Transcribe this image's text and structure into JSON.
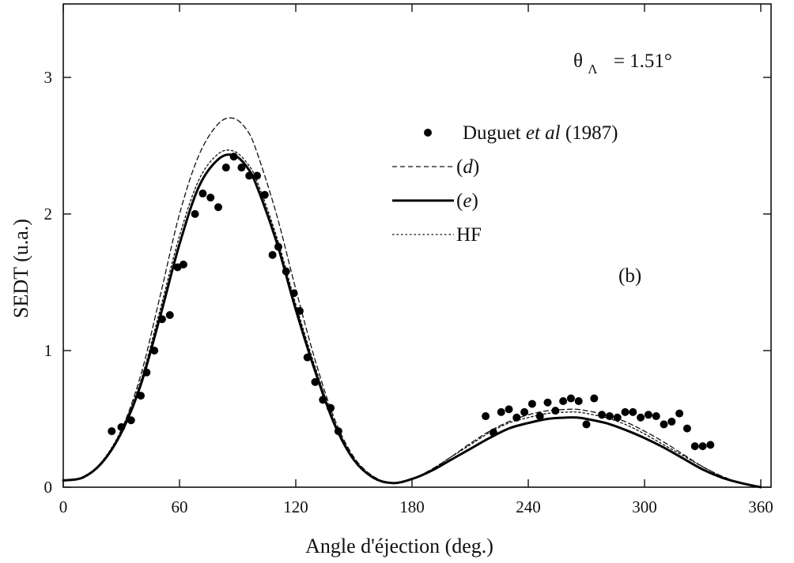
{
  "chart_data": {
    "type": "line",
    "xlabel": "Angle d'éjection (deg.)",
    "ylabel": "SEDT (u.a.)",
    "xlim": [
      0,
      360
    ],
    "ylim": [
      0,
      3.5
    ],
    "xticks": [
      "0",
      "60",
      "120",
      "180",
      "240",
      "300",
      "360"
    ],
    "yticks": [
      "0",
      "1",
      "2",
      "3"
    ],
    "grid": false,
    "legend_position": "top-right",
    "annotations": {
      "theta_base": "θ",
      "theta_sub": "Λ",
      "theta_value": "= 1.51°",
      "panel": "(b)"
    },
    "legend": [
      {
        "marker": "dot",
        "text_parts": [
          "Duguet ",
          "et al",
          "  (1987)"
        ]
      },
      {
        "marker": "dashed",
        "text_parts": [
          "(",
          "d",
          ")"
        ]
      },
      {
        "marker": "solid",
        "text_parts": [
          "(",
          "e",
          ")"
        ]
      },
      {
        "marker": "dotted",
        "text_parts": [
          "HF"
        ]
      }
    ],
    "series": [
      {
        "name": "Duguet et al (1987)",
        "style": "scatter",
        "x": [
          25,
          30,
          35,
          40,
          43,
          47,
          51,
          55,
          59,
          62,
          68,
          72,
          76,
          80,
          84,
          88,
          92,
          96,
          100,
          104,
          108,
          111,
          115,
          119,
          122,
          126,
          130,
          134,
          138,
          142,
          218,
          222,
          226,
          230,
          234,
          238,
          242,
          246,
          250,
          254,
          258,
          262,
          266,
          270,
          274,
          278,
          282,
          286,
          290,
          294,
          298,
          302,
          306,
          310,
          314,
          318,
          322,
          326,
          330,
          334
        ],
        "y": [
          0.41,
          0.44,
          0.49,
          0.67,
          0.84,
          1.0,
          1.23,
          1.26,
          1.61,
          1.63,
          2.0,
          2.15,
          2.12,
          2.05,
          2.34,
          2.42,
          2.34,
          2.28,
          2.28,
          2.14,
          1.7,
          1.76,
          1.58,
          1.42,
          1.29,
          0.95,
          0.77,
          0.64,
          0.58,
          0.41,
          0.52,
          0.4,
          0.55,
          0.57,
          0.51,
          0.55,
          0.61,
          0.52,
          0.62,
          0.56,
          0.63,
          0.65,
          0.63,
          0.46,
          0.65,
          0.53,
          0.52,
          0.51,
          0.55,
          0.55,
          0.51,
          0.53,
          0.52,
          0.46,
          0.48,
          0.54,
          0.43,
          0.3,
          0.3,
          0.31
        ]
      },
      {
        "name": "(d)",
        "style": "dashed",
        "x": [
          0,
          10,
          20,
          30,
          40,
          50,
          60,
          70,
          80,
          88,
          95,
          100,
          110,
          120,
          130,
          140,
          150,
          160,
          170,
          180,
          190,
          200,
          210,
          220,
          230,
          240,
          250,
          260,
          265,
          270,
          280,
          290,
          300,
          310,
          320,
          330,
          340,
          350,
          360
        ],
        "y": [
          0.05,
          0.07,
          0.18,
          0.42,
          0.82,
          1.4,
          2.0,
          2.43,
          2.66,
          2.7,
          2.61,
          2.45,
          2.0,
          1.45,
          0.93,
          0.5,
          0.22,
          0.08,
          0.03,
          0.06,
          0.13,
          0.22,
          0.32,
          0.41,
          0.48,
          0.53,
          0.56,
          0.57,
          0.57,
          0.56,
          0.53,
          0.48,
          0.41,
          0.33,
          0.24,
          0.15,
          0.08,
          0.03,
          0.0
        ]
      },
      {
        "name": "(e)",
        "style": "solid",
        "x": [
          0,
          10,
          20,
          30,
          40,
          50,
          60,
          70,
          80,
          88,
          95,
          100,
          110,
          120,
          130,
          140,
          150,
          160,
          170,
          180,
          190,
          200,
          210,
          220,
          230,
          240,
          250,
          260,
          265,
          270,
          280,
          290,
          300,
          310,
          320,
          330,
          340,
          350,
          360
        ],
        "y": [
          0.05,
          0.07,
          0.18,
          0.4,
          0.75,
          1.25,
          1.78,
          2.2,
          2.4,
          2.43,
          2.34,
          2.2,
          1.8,
          1.3,
          0.85,
          0.46,
          0.2,
          0.07,
          0.03,
          0.06,
          0.12,
          0.2,
          0.28,
          0.36,
          0.43,
          0.47,
          0.5,
          0.51,
          0.51,
          0.5,
          0.47,
          0.42,
          0.36,
          0.29,
          0.21,
          0.13,
          0.07,
          0.03,
          0.0
        ]
      },
      {
        "name": "HF",
        "style": "dotted",
        "x": [
          0,
          10,
          20,
          30,
          40,
          50,
          60,
          70,
          80,
          88,
          95,
          100,
          110,
          120,
          130,
          140,
          150,
          160,
          170,
          180,
          190,
          200,
          210,
          220,
          230,
          240,
          250,
          260,
          265,
          270,
          280,
          290,
          300,
          310,
          320,
          330,
          340,
          350,
          360
        ],
        "y": [
          0.05,
          0.07,
          0.19,
          0.42,
          0.78,
          1.3,
          1.84,
          2.25,
          2.44,
          2.46,
          2.37,
          2.24,
          1.84,
          1.34,
          0.88,
          0.48,
          0.21,
          0.07,
          0.03,
          0.06,
          0.13,
          0.22,
          0.31,
          0.4,
          0.47,
          0.51,
          0.54,
          0.55,
          0.55,
          0.54,
          0.51,
          0.46,
          0.39,
          0.31,
          0.23,
          0.15,
          0.08,
          0.03,
          0.0
        ]
      }
    ]
  }
}
